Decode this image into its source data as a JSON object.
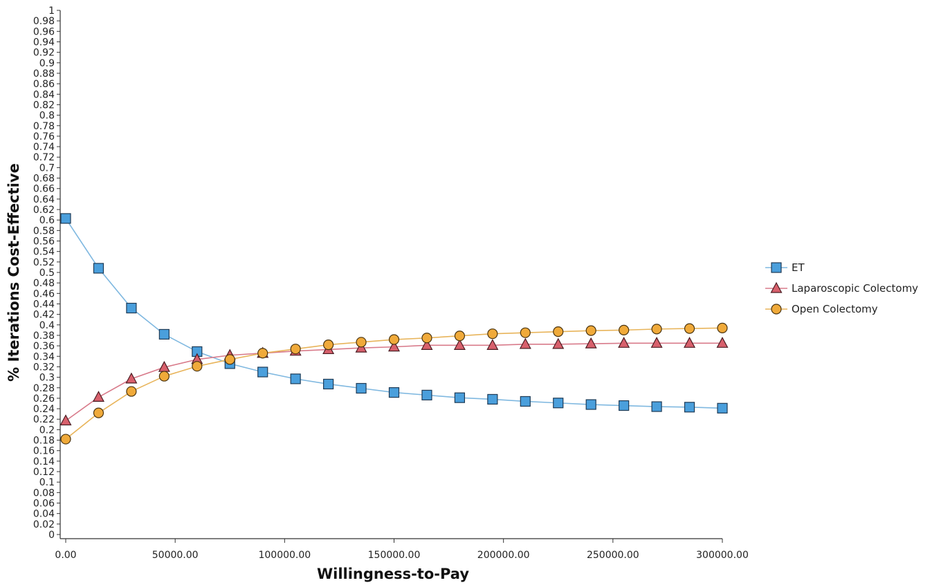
{
  "chart_data": {
    "type": "line",
    "title": "",
    "xlabel": "Willingness-to-Pay",
    "ylabel": "% Iterations Cost-Effective",
    "xlim": [
      0,
      300000
    ],
    "ylim": [
      0,
      1
    ],
    "x_ticks": [
      0,
      50000,
      100000,
      150000,
      200000,
      250000,
      300000
    ],
    "x_tick_labels": [
      "0.00",
      "50000.00",
      "100000.00",
      "150000.00",
      "200000.00",
      "250000.00",
      "300000.00"
    ],
    "y_tick_step": 0.02,
    "grid": false,
    "legend_position": "right",
    "x": [
      0,
      15000,
      30000,
      45000,
      60000,
      75000,
      90000,
      105000,
      120000,
      135000,
      150000,
      165000,
      180000,
      195000,
      210000,
      225000,
      240000,
      255000,
      270000,
      285000,
      300000
    ],
    "series": [
      {
        "name": "ET",
        "marker": "square",
        "line_color": "#7fb8e0",
        "marker_color": "#4a9fdc",
        "values": [
          0.603,
          0.508,
          0.432,
          0.382,
          0.349,
          0.326,
          0.31,
          0.297,
          0.287,
          0.279,
          0.271,
          0.266,
          0.261,
          0.258,
          0.254,
          0.251,
          0.248,
          0.246,
          0.244,
          0.243,
          0.241
        ]
      },
      {
        "name": "Laparoscopic Colectomy",
        "marker": "triangle",
        "line_color": "#d87a8a",
        "marker_color": "#d8606c",
        "values": [
          0.217,
          0.262,
          0.297,
          0.319,
          0.334,
          0.342,
          0.346,
          0.35,
          0.353,
          0.356,
          0.358,
          0.361,
          0.361,
          0.361,
          0.363,
          0.363,
          0.364,
          0.365,
          0.365,
          0.365,
          0.365
        ]
      },
      {
        "name": "Open Colectomy",
        "marker": "circle",
        "line_color": "#e8b45a",
        "marker_color": "#f0aa3a",
        "values": [
          0.182,
          0.232,
          0.273,
          0.302,
          0.321,
          0.334,
          0.346,
          0.354,
          0.362,
          0.367,
          0.372,
          0.375,
          0.379,
          0.383,
          0.385,
          0.387,
          0.389,
          0.39,
          0.392,
          0.393,
          0.394
        ]
      }
    ]
  }
}
